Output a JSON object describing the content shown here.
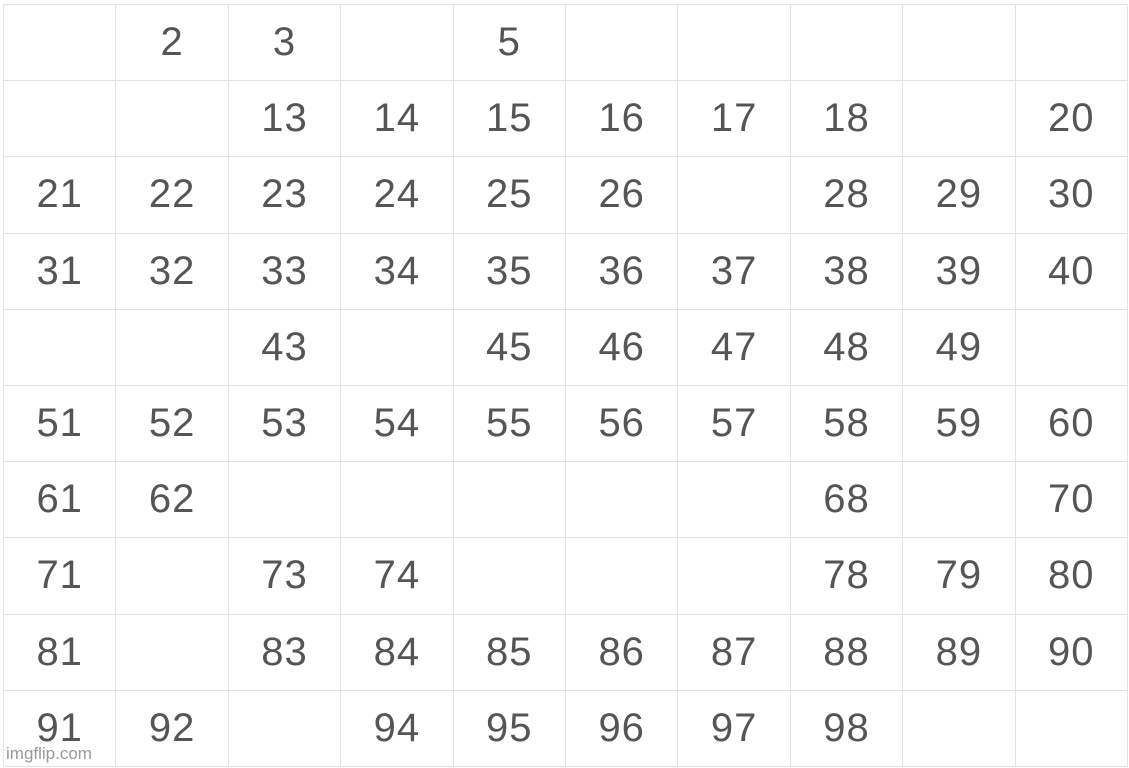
{
  "table": {
    "rows": [
      [
        null,
        2,
        3,
        null,
        5,
        null,
        null,
        null,
        null,
        null
      ],
      [
        null,
        null,
        13,
        14,
        15,
        16,
        17,
        18,
        null,
        20
      ],
      [
        21,
        22,
        23,
        24,
        25,
        26,
        null,
        28,
        29,
        30
      ],
      [
        31,
        32,
        33,
        34,
        35,
        36,
        37,
        38,
        39,
        40
      ],
      [
        null,
        null,
        43,
        null,
        45,
        46,
        47,
        48,
        49,
        null
      ],
      [
        51,
        52,
        53,
        54,
        55,
        56,
        57,
        58,
        59,
        60
      ],
      [
        61,
        62,
        null,
        null,
        null,
        null,
        null,
        68,
        null,
        70
      ],
      [
        71,
        null,
        73,
        74,
        null,
        null,
        null,
        78,
        79,
        80
      ],
      [
        81,
        null,
        83,
        84,
        85,
        86,
        87,
        88,
        89,
        90
      ],
      [
        91,
        92,
        null,
        94,
        95,
        96,
        97,
        98,
        null,
        null
      ]
    ]
  },
  "watermark": "imgflip.com"
}
